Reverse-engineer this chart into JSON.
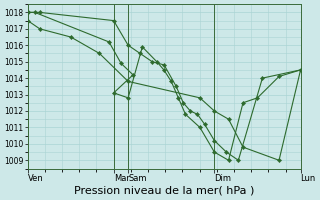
{
  "background_color": "#cde8e8",
  "grid_color": "#b0d8d8",
  "line_color": "#2d6a2d",
  "marker_color": "#2d6a2d",
  "xlabel": "Pression niveau de la mer( hPa )",
  "xlabel_fontsize": 8,
  "ylim": [
    1008.5,
    1018.5
  ],
  "yticks": [
    1009,
    1010,
    1011,
    1012,
    1013,
    1014,
    1015,
    1016,
    1017,
    1018
  ],
  "ytick_fontsize": 6,
  "xtick_labels": [
    "Ven",
    "Mar",
    "Sam",
    "Dim",
    "Lun"
  ],
  "xtick_positions": [
    0.0,
    0.315,
    0.368,
    0.684,
    1.0
  ],
  "vline_positions": [
    0.0,
    0.315,
    0.368,
    0.684,
    1.0
  ],
  "series": [
    {
      "x": [
        0.0,
        0.044,
        0.315,
        0.368,
        0.412,
        0.456,
        0.5,
        0.544,
        0.57,
        0.596,
        0.622,
        0.648,
        0.684,
        0.728,
        0.772,
        0.86,
        1.0
      ],
      "y": [
        1018.0,
        1018.0,
        1017.5,
        1016.0,
        1015.5,
        1015.0,
        1014.8,
        1013.5,
        1012.5,
        1012.0,
        1011.8,
        1011.2,
        1010.2,
        1009.5,
        1009.0,
        1014.0,
        1014.5
      ]
    },
    {
      "x": [
        0.0,
        0.026,
        0.298,
        0.342,
        0.386,
        0.315,
        0.368,
        0.42,
        0.473,
        0.499,
        0.526,
        0.552,
        0.578,
        0.631,
        0.684,
        0.736,
        0.789,
        0.842,
        0.921,
        1.0
      ],
      "y": [
        1018.0,
        1018.0,
        1016.2,
        1014.9,
        1014.2,
        1013.1,
        1012.8,
        1015.9,
        1015.0,
        1014.5,
        1013.8,
        1012.8,
        1011.8,
        1011.0,
        1009.5,
        1009.0,
        1012.5,
        1012.8,
        1014.1,
        1014.5
      ]
    },
    {
      "x": [
        0.0,
        0.044,
        0.158,
        0.263,
        0.368,
        0.631,
        0.684,
        0.736,
        0.789,
        0.921,
        1.0
      ],
      "y": [
        1017.5,
        1017.0,
        1016.5,
        1015.5,
        1013.8,
        1012.8,
        1012.0,
        1011.5,
        1009.8,
        1009.0,
        1014.5
      ]
    }
  ]
}
